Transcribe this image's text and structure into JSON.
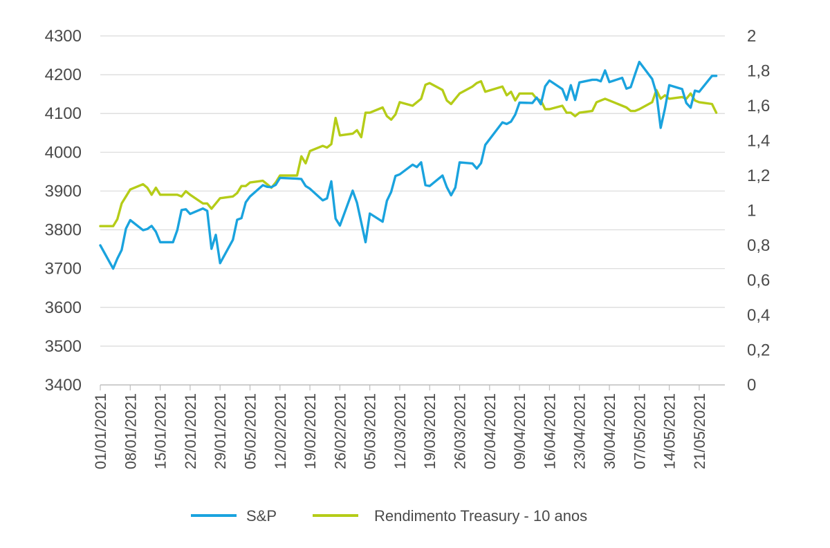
{
  "chart_data": {
    "type": "line",
    "title": "",
    "xlabel": "",
    "ylabel": "",
    "grid": "horizontal",
    "legend_position": "bottom-center",
    "x_ticks": [
      "01/01/2021",
      "08/01/2021",
      "15/01/2021",
      "22/01/2021",
      "29/01/2021",
      "05/02/2021",
      "12/02/2021",
      "19/02/2021",
      "26/02/2021",
      "05/03/2021",
      "12/03/2021",
      "19/03/2021",
      "26/03/2021",
      "02/04/2021",
      "09/04/2021",
      "16/04/2021",
      "23/04/2021",
      "30/04/2021",
      "07/05/2021",
      "14/05/2021",
      "21/05/2021"
    ],
    "x_range": [
      "2021-01-01",
      "2021-05-27"
    ],
    "y_left": {
      "ylim": [
        3400,
        4300
      ],
      "ticks": [
        "3400",
        "3500",
        "3600",
        "3700",
        "3800",
        "3900",
        "4000",
        "4100",
        "4200",
        "4300"
      ]
    },
    "y_right": {
      "ylim": [
        0,
        2
      ],
      "ticks": [
        "0",
        "0,2",
        "0,4",
        "0,6",
        "0,8",
        "1",
        "1,2",
        "1,4",
        "1,6",
        "1,8",
        "2"
      ]
    },
    "series": [
      {
        "name": "S&P",
        "axis": "left",
        "color": "#1aa3de",
        "points": [
          [
            "2021-01-01",
            3760
          ],
          [
            "2021-01-04",
            3700
          ],
          [
            "2021-01-05",
            3726
          ],
          [
            "2021-01-06",
            3748
          ],
          [
            "2021-01-07",
            3803
          ],
          [
            "2021-01-08",
            3825
          ],
          [
            "2021-01-11",
            3799
          ],
          [
            "2021-01-12",
            3802
          ],
          [
            "2021-01-13",
            3810
          ],
          [
            "2021-01-14",
            3795
          ],
          [
            "2021-01-15",
            3768
          ],
          [
            "2021-01-18",
            3768
          ],
          [
            "2021-01-19",
            3799
          ],
          [
            "2021-01-20",
            3851
          ],
          [
            "2021-01-21",
            3853
          ],
          [
            "2021-01-22",
            3841
          ],
          [
            "2021-01-25",
            3855
          ],
          [
            "2021-01-26",
            3849
          ],
          [
            "2021-01-27",
            3751
          ],
          [
            "2021-01-28",
            3787
          ],
          [
            "2021-01-29",
            3714
          ],
          [
            "2021-02-01",
            3774
          ],
          [
            "2021-02-02",
            3826
          ],
          [
            "2021-02-03",
            3830
          ],
          [
            "2021-02-04",
            3871
          ],
          [
            "2021-02-05",
            3886
          ],
          [
            "2021-02-08",
            3915
          ],
          [
            "2021-02-09",
            3911
          ],
          [
            "2021-02-10",
            3910
          ],
          [
            "2021-02-11",
            3916
          ],
          [
            "2021-02-12",
            3934
          ],
          [
            "2021-02-16",
            3932
          ],
          [
            "2021-02-17",
            3931
          ],
          [
            "2021-02-18",
            3913
          ],
          [
            "2021-02-19",
            3906
          ],
          [
            "2021-02-22",
            3876
          ],
          [
            "2021-02-23",
            3881
          ],
          [
            "2021-02-24",
            3925
          ],
          [
            "2021-02-25",
            3829
          ],
          [
            "2021-02-26",
            3811
          ],
          [
            "2021-03-01",
            3901
          ],
          [
            "2021-03-02",
            3870
          ],
          [
            "2021-03-03",
            3819
          ],
          [
            "2021-03-04",
            3768
          ],
          [
            "2021-03-05",
            3842
          ],
          [
            "2021-03-08",
            3821
          ],
          [
            "2021-03-09",
            3875
          ],
          [
            "2021-03-10",
            3898
          ],
          [
            "2021-03-11",
            3939
          ],
          [
            "2021-03-12",
            3943
          ],
          [
            "2021-03-15",
            3968
          ],
          [
            "2021-03-16",
            3962
          ],
          [
            "2021-03-17",
            3974
          ],
          [
            "2021-03-18",
            3915
          ],
          [
            "2021-03-19",
            3913
          ],
          [
            "2021-03-22",
            3940
          ],
          [
            "2021-03-23",
            3910
          ],
          [
            "2021-03-24",
            3889
          ],
          [
            "2021-03-25",
            3909
          ],
          [
            "2021-03-26",
            3974
          ],
          [
            "2021-03-29",
            3971
          ],
          [
            "2021-03-30",
            3958
          ],
          [
            "2021-03-31",
            3972
          ],
          [
            "2021-04-01",
            4019
          ],
          [
            "2021-04-05",
            4077
          ],
          [
            "2021-04-06",
            4073
          ],
          [
            "2021-04-07",
            4079
          ],
          [
            "2021-04-08",
            4097
          ],
          [
            "2021-04-09",
            4128
          ],
          [
            "2021-04-12",
            4127
          ],
          [
            "2021-04-13",
            4141
          ],
          [
            "2021-04-14",
            4124
          ],
          [
            "2021-04-15",
            4170
          ],
          [
            "2021-04-16",
            4185
          ],
          [
            "2021-04-19",
            4163
          ],
          [
            "2021-04-20",
            4135
          ],
          [
            "2021-04-21",
            4173
          ],
          [
            "2021-04-22",
            4135
          ],
          [
            "2021-04-23",
            4180
          ],
          [
            "2021-04-26",
            4187
          ],
          [
            "2021-04-27",
            4187
          ],
          [
            "2021-04-28",
            4183
          ],
          [
            "2021-04-29",
            4211
          ],
          [
            "2021-04-30",
            4181
          ],
          [
            "2021-05-03",
            4192
          ],
          [
            "2021-05-04",
            4164
          ],
          [
            "2021-05-05",
            4168
          ],
          [
            "2021-05-06",
            4201
          ],
          [
            "2021-05-07",
            4233
          ],
          [
            "2021-05-10",
            4189
          ],
          [
            "2021-05-11",
            4152
          ],
          [
            "2021-05-12",
            4063
          ],
          [
            "2021-05-13",
            4113
          ],
          [
            "2021-05-14",
            4173
          ],
          [
            "2021-05-17",
            4163
          ],
          [
            "2021-05-18",
            4127
          ],
          [
            "2021-05-19",
            4115
          ],
          [
            "2021-05-20",
            4159
          ],
          [
            "2021-05-21",
            4156
          ],
          [
            "2021-05-24",
            4197
          ],
          [
            "2021-05-25",
            4197
          ]
        ]
      },
      {
        "name": "Rendimento Treasury - 10 anos",
        "axis": "right",
        "color": "#b5cc18",
        "points": [
          [
            "2021-01-01",
            0.91
          ],
          [
            "2021-01-04",
            0.91
          ],
          [
            "2021-01-05",
            0.95
          ],
          [
            "2021-01-06",
            1.04
          ],
          [
            "2021-01-07",
            1.08
          ],
          [
            "2021-01-08",
            1.12
          ],
          [
            "2021-01-11",
            1.15
          ],
          [
            "2021-01-12",
            1.13
          ],
          [
            "2021-01-13",
            1.09
          ],
          [
            "2021-01-14",
            1.13
          ],
          [
            "2021-01-15",
            1.09
          ],
          [
            "2021-01-18",
            1.09
          ],
          [
            "2021-01-19",
            1.09
          ],
          [
            "2021-01-20",
            1.08
          ],
          [
            "2021-01-21",
            1.11
          ],
          [
            "2021-01-22",
            1.09
          ],
          [
            "2021-01-25",
            1.04
          ],
          [
            "2021-01-26",
            1.04
          ],
          [
            "2021-01-27",
            1.01
          ],
          [
            "2021-01-28",
            1.04
          ],
          [
            "2021-01-29",
            1.07
          ],
          [
            "2021-02-01",
            1.08
          ],
          [
            "2021-02-02",
            1.1
          ],
          [
            "2021-02-03",
            1.14
          ],
          [
            "2021-02-04",
            1.14
          ],
          [
            "2021-02-05",
            1.16
          ],
          [
            "2021-02-08",
            1.17
          ],
          [
            "2021-02-09",
            1.15
          ],
          [
            "2021-02-10",
            1.13
          ],
          [
            "2021-02-11",
            1.16
          ],
          [
            "2021-02-12",
            1.2
          ],
          [
            "2021-02-16",
            1.2
          ],
          [
            "2021-02-17",
            1.31
          ],
          [
            "2021-02-18",
            1.27
          ],
          [
            "2021-02-19",
            1.34
          ],
          [
            "2021-02-22",
            1.37
          ],
          [
            "2021-02-23",
            1.36
          ],
          [
            "2021-02-24",
            1.38
          ],
          [
            "2021-02-25",
            1.53
          ],
          [
            "2021-02-26",
            1.43
          ],
          [
            "2021-03-01",
            1.44
          ],
          [
            "2021-03-02",
            1.46
          ],
          [
            "2021-03-03",
            1.42
          ],
          [
            "2021-03-04",
            1.56
          ],
          [
            "2021-03-05",
            1.56
          ],
          [
            "2021-03-08",
            1.59
          ],
          [
            "2021-03-09",
            1.54
          ],
          [
            "2021-03-10",
            1.52
          ],
          [
            "2021-03-11",
            1.55
          ],
          [
            "2021-03-12",
            1.62
          ],
          [
            "2021-03-15",
            1.6
          ],
          [
            "2021-03-16",
            1.62
          ],
          [
            "2021-03-17",
            1.64
          ],
          [
            "2021-03-18",
            1.72
          ],
          [
            "2021-03-19",
            1.73
          ],
          [
            "2021-03-22",
            1.69
          ],
          [
            "2021-03-23",
            1.63
          ],
          [
            "2021-03-24",
            1.61
          ],
          [
            "2021-03-25",
            1.64
          ],
          [
            "2021-03-26",
            1.67
          ],
          [
            "2021-03-29",
            1.71
          ],
          [
            "2021-03-30",
            1.73
          ],
          [
            "2021-03-31",
            1.74
          ],
          [
            "2021-04-01",
            1.68
          ],
          [
            "2021-04-05",
            1.71
          ],
          [
            "2021-04-06",
            1.66
          ],
          [
            "2021-04-07",
            1.68
          ],
          [
            "2021-04-08",
            1.63
          ],
          [
            "2021-04-09",
            1.67
          ],
          [
            "2021-04-12",
            1.67
          ],
          [
            "2021-04-13",
            1.64
          ],
          [
            "2021-04-14",
            1.63
          ],
          [
            "2021-04-15",
            1.58
          ],
          [
            "2021-04-16",
            1.58
          ],
          [
            "2021-04-19",
            1.6
          ],
          [
            "2021-04-20",
            1.56
          ],
          [
            "2021-04-21",
            1.56
          ],
          [
            "2021-04-22",
            1.54
          ],
          [
            "2021-04-23",
            1.56
          ],
          [
            "2021-04-26",
            1.57
          ],
          [
            "2021-04-27",
            1.62
          ],
          [
            "2021-04-28",
            1.63
          ],
          [
            "2021-04-29",
            1.64
          ],
          [
            "2021-04-30",
            1.63
          ],
          [
            "2021-05-03",
            1.6
          ],
          [
            "2021-05-04",
            1.59
          ],
          [
            "2021-05-05",
            1.57
          ],
          [
            "2021-05-06",
            1.57
          ],
          [
            "2021-05-07",
            1.58
          ],
          [
            "2021-05-10",
            1.62
          ],
          [
            "2021-05-11",
            1.69
          ],
          [
            "2021-05-12",
            1.64
          ],
          [
            "2021-05-13",
            1.66
          ],
          [
            "2021-05-14",
            1.64
          ],
          [
            "2021-05-17",
            1.65
          ],
          [
            "2021-05-18",
            1.64
          ],
          [
            "2021-05-19",
            1.67
          ],
          [
            "2021-05-20",
            1.63
          ],
          [
            "2021-05-21",
            1.62
          ],
          [
            "2021-05-24",
            1.61
          ],
          [
            "2021-05-25",
            1.56
          ]
        ]
      }
    ]
  }
}
